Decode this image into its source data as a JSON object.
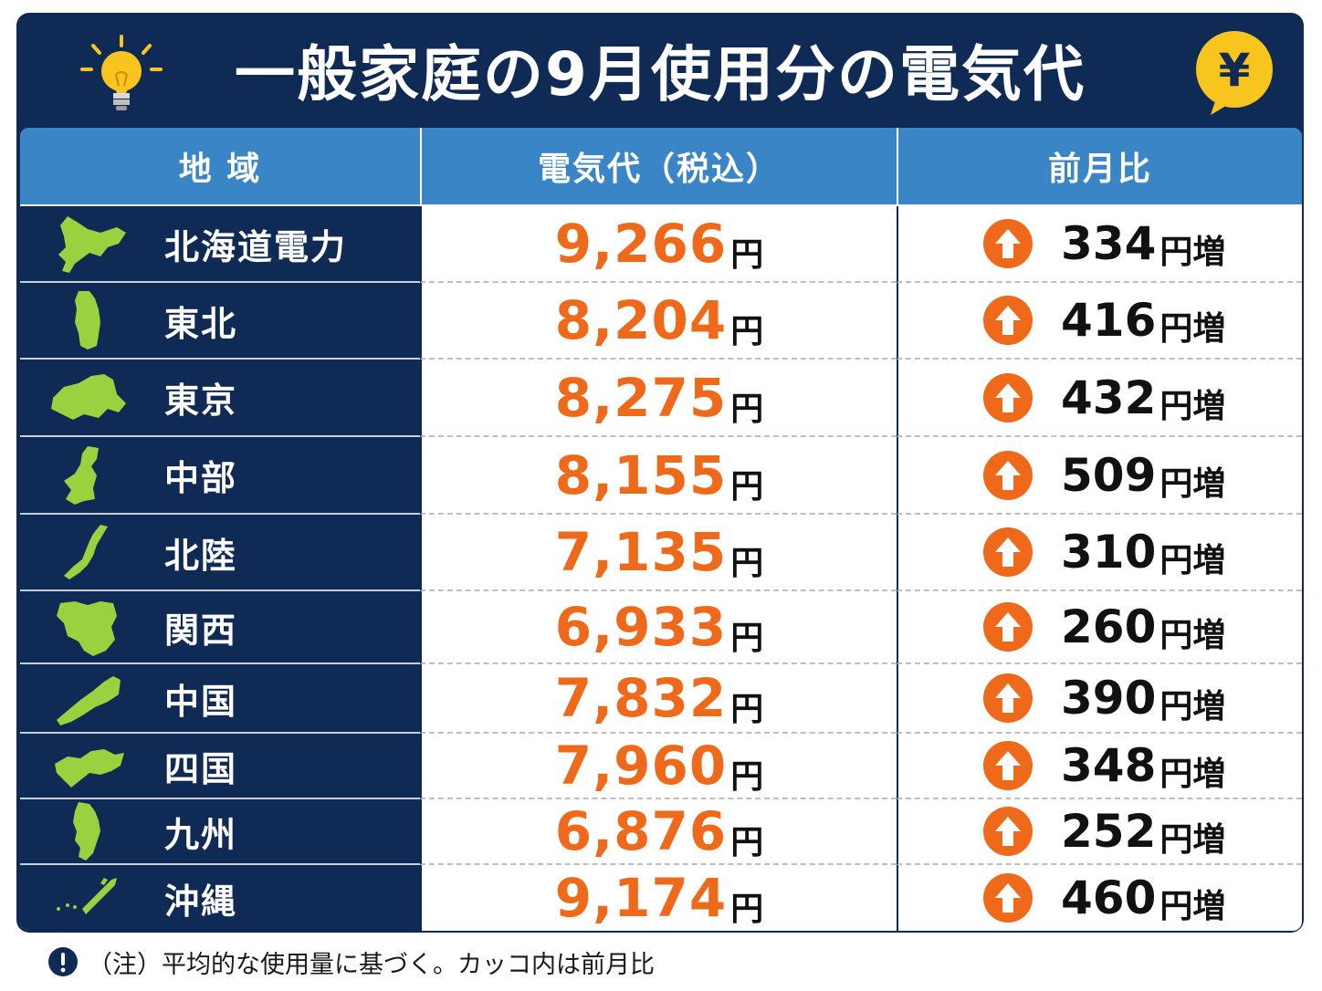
{
  "title": "一般家庭の9月使用分の電気代",
  "header": {
    "col_region": "地 域",
    "col_price": "電気代（税込）",
    "col_diff": "前月比"
  },
  "unit_yen": "円",
  "unit_increase": "円増",
  "rows": [
    {
      "region": "北海道電力",
      "price": "9,266",
      "diff": "334"
    },
    {
      "region": "東北",
      "price": "8,204",
      "diff": "416"
    },
    {
      "region": "東京",
      "price": "8,275",
      "diff": "432"
    },
    {
      "region": "中部",
      "price": "8,155",
      "diff": "509"
    },
    {
      "region": "北陸",
      "price": "7,135",
      "diff": "310"
    },
    {
      "region": "関西",
      "price": "6,933",
      "diff": "260"
    },
    {
      "region": "中国",
      "price": "7,832",
      "diff": "390"
    },
    {
      "region": "四国",
      "price": "7,960",
      "diff": "348"
    },
    {
      "region": "九州",
      "price": "6,876",
      "diff": "252"
    },
    {
      "region": "沖縄",
      "price": "9,174",
      "diff": "460"
    }
  ],
  "note": "（注）平均的な使用量に基づく。カッコ内は前月比",
  "yen_symbol": "¥",
  "colors": {
    "navy": "#0f2a55",
    "header_blue": "#3a85c6",
    "accent_orange": "#ee6a1a",
    "map_green": "#9bd13f",
    "bulb_yellow": "#f7c51e"
  }
}
